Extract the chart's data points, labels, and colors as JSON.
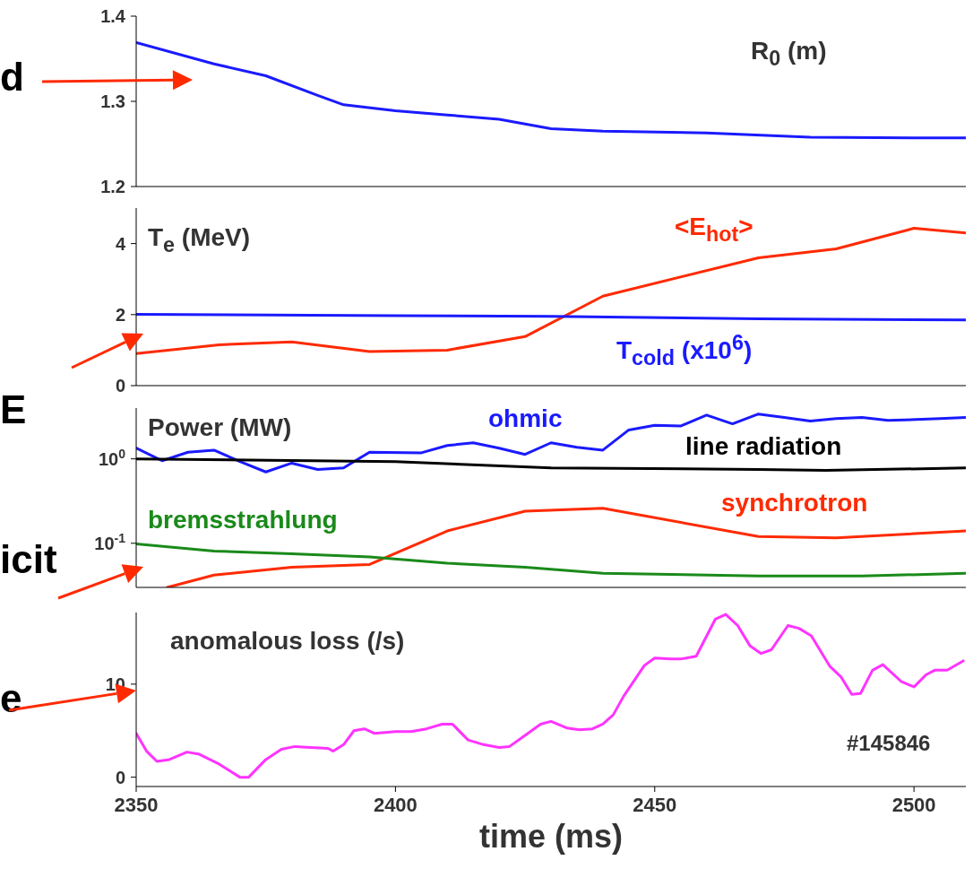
{
  "chart_data": [
    {
      "type": "line",
      "title": "R$_{0}$ (m)",
      "annotations": [
        "d"
      ],
      "xlim": [
        2350,
        2510
      ],
      "xticks": [
        2350,
        2400,
        2450,
        2500
      ],
      "ylim": [
        1.2,
        1.4
      ],
      "yticks": [
        1.2,
        1.3,
        1.4
      ],
      "tick_labels": "y",
      "series": [
        {
          "color": "#1a1aff",
          "x": [
            2350,
            2365,
            2375,
            2385,
            2390,
            2400,
            2410,
            2420,
            2430,
            2440,
            2460,
            2480,
            2500,
            2510
          ],
          "values": [
            1.369,
            1.344,
            1.33,
            1.307,
            1.296,
            1.289,
            1.284,
            1.279,
            1.268,
            1.265,
            1.263,
            1.258,
            1.257,
            1.257
          ]
        }
      ]
    },
    {
      "type": "line",
      "title": "T$_{e}$ (MeV)",
      "xlim": [
        2350,
        2510
      ],
      "xticks": [
        2350,
        2400,
        2450,
        2500
      ],
      "ylim": [
        0,
        5
      ],
      "yticks": [
        0,
        2,
        4
      ],
      "tick_labels": "y",
      "series": [
        {
          "name": "<E$_{hot}$>",
          "color": "#ff2a00",
          "x": [
            2350,
            2366,
            2380,
            2395,
            2410,
            2425,
            2440,
            2470,
            2485,
            2500,
            2510
          ],
          "values": [
            0.9,
            1.15,
            1.23,
            0.96,
            1.0,
            1.38,
            2.52,
            3.6,
            3.85,
            4.43,
            4.3
          ]
        },
        {
          "name": "T$_{cold}$ (x10$^{6}$)",
          "color": "#1a1aff",
          "x": [
            2350,
            2400,
            2430,
            2470,
            2510
          ],
          "values": [
            2.01,
            1.97,
            1.95,
            1.88,
            1.85
          ]
        }
      ]
    },
    {
      "type": "line",
      "title": "Power (MW)",
      "annotations": [
        "E",
        "icit"
      ],
      "log": "y",
      "xlim": [
        2350,
        2510
      ],
      "xticks": [
        2350,
        2400,
        2450,
        2500
      ],
      "ylim": [
        0.03,
        4
      ],
      "yticks": [
        {
          "value": 0.1,
          "label": "10$^{-1}$"
        },
        {
          "value": 1,
          "label": "10$^{0}$"
        }
      ],
      "tick_labels": "y",
      "series": [
        {
          "name": "ohmic",
          "color": "#1a1aff",
          "x": [
            2350,
            2355,
            2360,
            2365,
            2370,
            2375,
            2380,
            2385,
            2390,
            2395,
            2405,
            2410,
            2415,
            2420,
            2425,
            2430,
            2435,
            2440,
            2445,
            2450,
            2455,
            2460,
            2465,
            2470,
            2475,
            2480,
            2485,
            2490,
            2495,
            2505,
            2510
          ],
          "values": [
            1.34,
            0.95,
            1.2,
            1.27,
            0.93,
            0.7,
            0.89,
            0.75,
            0.78,
            1.2,
            1.18,
            1.44,
            1.55,
            1.34,
            1.13,
            1.55,
            1.37,
            1.27,
            2.2,
            2.5,
            2.45,
            3.3,
            2.6,
            3.4,
            3.1,
            2.8,
            3.0,
            3.1,
            2.85,
            3.0,
            3.1
          ]
        },
        {
          "name": "line radiation",
          "color": "#000000",
          "x": [
            2350,
            2400,
            2430,
            2470,
            2483,
            2510
          ],
          "values": [
            1.0,
            0.93,
            0.78,
            0.75,
            0.73,
            0.78
          ]
        },
        {
          "name": "synchrotron",
          "color": "#ff2a00",
          "x": [
            2356,
            2365,
            2380,
            2395,
            2410,
            2425,
            2440,
            2470,
            2485,
            2510
          ],
          "values": [
            0.03,
            0.042,
            0.052,
            0.056,
            0.14,
            0.24,
            0.26,
            0.12,
            0.116,
            0.14
          ]
        },
        {
          "name": "bremsstrahlung",
          "color": "#1a8a1a",
          "x": [
            2350,
            2365,
            2380,
            2395,
            2410,
            2425,
            2440,
            2470,
            2490,
            2510
          ],
          "values": [
            0.098,
            0.081,
            0.075,
            0.069,
            0.058,
            0.052,
            0.044,
            0.041,
            0.041,
            0.044
          ]
        }
      ]
    },
    {
      "type": "line",
      "title": "anomalous loss (/s)",
      "xlabel": "time (ms)",
      "annotations": [
        "#145846",
        "e"
      ],
      "xlim": [
        2350,
        2510
      ],
      "xticks": [
        2350,
        2400,
        2450,
        2500
      ],
      "ylim": [
        -1,
        17.7
      ],
      "yticks": [
        0,
        10
      ],
      "series": [
        {
          "color": "#ff33ff",
          "x": [
            2350,
            2352,
            2354,
            2356.4,
            2359.8,
            2362,
            2365.7,
            2370,
            2371.7,
            2375,
            2378,
            2380.6,
            2383.6,
            2387,
            2388,
            2390,
            2392,
            2394,
            2396,
            2400,
            2403,
            2406,
            2409,
            2411,
            2414,
            2417,
            2420,
            2422,
            2425,
            2428,
            2430,
            2433,
            2435.5,
            2438,
            2440,
            2442,
            2444,
            2448,
            2450,
            2453,
            2455,
            2458,
            2461.7,
            2463.7,
            2466,
            2468.4,
            2470.5,
            2472.5,
            2475.7,
            2477.8,
            2480.2,
            2483.8,
            2485.9,
            2488,
            2489.7,
            2492,
            2494,
            2497.5,
            2500,
            2502.3,
            2504,
            2506.4,
            2509.5
          ],
          "values": [
            4.7,
            2.8,
            1.7,
            1.9,
            2.7,
            2.5,
            1.5,
            0.0,
            0.0,
            1.9,
            3.0,
            3.3,
            3.2,
            3.1,
            2.8,
            3.5,
            5.0,
            5.2,
            4.7,
            4.9,
            4.9,
            5.2,
            5.7,
            5.7,
            4.0,
            3.5,
            3.2,
            3.3,
            4.5,
            5.7,
            6.0,
            5.3,
            5.1,
            5.2,
            5.7,
            6.7,
            8.7,
            12.0,
            12.8,
            12.7,
            12.7,
            13.0,
            17.0,
            17.5,
            16.3,
            14.1,
            13.3,
            13.7,
            16.3,
            16.0,
            15.2,
            11.9,
            10.8,
            8.9,
            9.0,
            11.5,
            12.1,
            10.3,
            9.7,
            11.0,
            11.5,
            11.5,
            12.5
          ]
        }
      ]
    }
  ]
}
